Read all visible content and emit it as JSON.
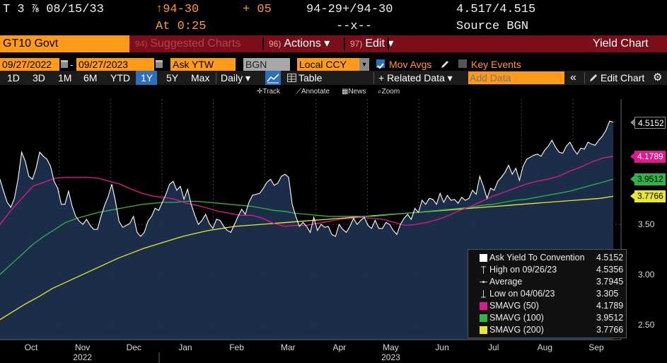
{
  "quote": {
    "security": "T 3 ⅞ 08/15/33",
    "price": "↑94-30",
    "change": "+ 05",
    "bid_ask": "94-29+/94-30",
    "yields": "4.517/4.515",
    "time": "At 0:25",
    "size": "--x--",
    "source": "Source BGN"
  },
  "menubar": {
    "ticker": "GT10 Govt",
    "suggested_num": "94)",
    "suggested": "Suggested Charts",
    "actions_num": "96)",
    "actions": "Actions ▾",
    "edit_num": "97)",
    "edit": "Edit ▾",
    "title": "Yield Chart"
  },
  "controls": {
    "start_date": "09/27/2022",
    "dash": "-",
    "end_date": "09/27/2023",
    "field": "Ask YTW",
    "source": "BGN",
    "currency": "Local CCY",
    "mov_avgs": "Mov Avgs",
    "key_events": "Key Events"
  },
  "periods": {
    "items": [
      "1D",
      "3D",
      "1M",
      "6M",
      "YTD",
      "1Y",
      "5Y",
      "Max"
    ],
    "selected": "1Y",
    "frequency": "Daily ▾",
    "table": "Table",
    "related": "+ Related Data ▾",
    "add_data_placeholder": "Add Data",
    "collapse": "«",
    "edit_chart": "Edit Chart"
  },
  "tools": {
    "track": "Track",
    "annotate": "Annotate",
    "news": "News",
    "zoom": "Zoom"
  },
  "colors": {
    "price": "#ffffff",
    "sma50": "#e0198f",
    "sma100": "#2fb34a",
    "sma200": "#e8e82e",
    "fill": "#1d2f4e",
    "orange": "#ff9a1a"
  },
  "chart_data": {
    "type": "line",
    "title": "",
    "ylim": [
      2.35,
      4.75
    ],
    "yticks": [
      "3.50",
      "3.00",
      "2.50"
    ],
    "xticks": [
      "Oct",
      "Nov",
      "Dec",
      "Jan",
      "Feb",
      "Mar",
      "Apr",
      "May",
      "Jun",
      "Jul",
      "Aug",
      "Sep"
    ],
    "xyears": [
      "2022",
      "2023"
    ],
    "series": [
      {
        "key": "price",
        "values": [
          3.95,
          3.83,
          3.72,
          3.67,
          3.76,
          3.95,
          4.22,
          4.13,
          3.98,
          3.95,
          4.06,
          4.22,
          4.18,
          4.15,
          4.08,
          3.93,
          3.86,
          3.7,
          3.7,
          3.83,
          3.68,
          3.58,
          3.53,
          3.5,
          3.55,
          3.49,
          3.45,
          3.45,
          3.58,
          3.69,
          3.78,
          3.9,
          3.73,
          3.53,
          3.47,
          3.49,
          3.51,
          3.58,
          3.42,
          3.38,
          3.42,
          3.53,
          3.58,
          3.66,
          3.64,
          3.72,
          3.8,
          3.9,
          3.93,
          3.84,
          3.88,
          3.75,
          3.85,
          3.7,
          3.59,
          3.5,
          3.54,
          3.6,
          3.51,
          3.46,
          3.55,
          3.54,
          3.48,
          3.44,
          3.42,
          3.5,
          3.58,
          3.65,
          3.6,
          3.72,
          3.79,
          3.8,
          3.81,
          3.86,
          3.92,
          3.95,
          3.89,
          3.91,
          3.98,
          4.0,
          3.97,
          3.7,
          3.58,
          3.48,
          3.52,
          3.48,
          3.42,
          3.57,
          3.44,
          3.5,
          3.47,
          3.48,
          3.4,
          3.38,
          3.5,
          3.45,
          3.42,
          3.48,
          3.56,
          3.5,
          3.54,
          3.57,
          3.49,
          3.46,
          3.54,
          3.46,
          3.46,
          3.52,
          3.5,
          3.44,
          3.4,
          3.5,
          3.56,
          3.6,
          3.55,
          3.66,
          3.62,
          3.74,
          3.7,
          3.76,
          3.75,
          3.7,
          3.81,
          3.72,
          3.79,
          3.74,
          3.75,
          3.71,
          3.77,
          3.74,
          3.76,
          3.84,
          3.8,
          3.98,
          3.88,
          3.76,
          3.86,
          3.84,
          3.93,
          3.97,
          4.02,
          4.09,
          4.0,
          4.06,
          3.94,
          4.08,
          4.15,
          4.17,
          4.19,
          4.2,
          4.18,
          4.24,
          4.28,
          4.34,
          4.27,
          4.22,
          4.21,
          4.28,
          4.32,
          4.25,
          4.2,
          4.26,
          4.25,
          4.32,
          4.3,
          4.29,
          4.34,
          4.38,
          4.44,
          4.53,
          4.52
        ]
      },
      {
        "key": "sma50",
        "name": "SMAVG (50)",
        "values": [
          3.5,
          3.64,
          3.76,
          3.88,
          3.92,
          3.96,
          3.97,
          3.97,
          3.97,
          3.96,
          3.93,
          3.9,
          3.85,
          3.81,
          3.78,
          3.77,
          3.75,
          3.71,
          3.69,
          3.66,
          3.63,
          3.61,
          3.59,
          3.59,
          3.56,
          3.51,
          3.48,
          3.49,
          3.49,
          3.51,
          3.53,
          3.55,
          3.56,
          3.57,
          3.56,
          3.55,
          3.52,
          3.49,
          3.5,
          3.52,
          3.55,
          3.59,
          3.64,
          3.68,
          3.73,
          3.78,
          3.82,
          3.86,
          3.9,
          3.93,
          3.95,
          3.98,
          4.03,
          4.07,
          4.12,
          4.16,
          4.18
        ]
      },
      {
        "key": "sma100",
        "name": "SMAVG (100)",
        "values": [
          3.0,
          3.1,
          3.2,
          3.3,
          3.38,
          3.45,
          3.52,
          3.56,
          3.59,
          3.62,
          3.64,
          3.66,
          3.68,
          3.7,
          3.71,
          3.72,
          3.72,
          3.73,
          3.73,
          3.72,
          3.71,
          3.7,
          3.69,
          3.68,
          3.66,
          3.64,
          3.63,
          3.61,
          3.6,
          3.59,
          3.58,
          3.58,
          3.58,
          3.58,
          3.58,
          3.59,
          3.6,
          3.61,
          3.62,
          3.63,
          3.64,
          3.65,
          3.66,
          3.67,
          3.69,
          3.7,
          3.72,
          3.74,
          3.75,
          3.77,
          3.79,
          3.81,
          3.83,
          3.86,
          3.89,
          3.92,
          3.95
        ]
      },
      {
        "key": "sma200",
        "name": "SMAVG (200)",
        "values": [
          2.55,
          2.63,
          2.71,
          2.78,
          2.86,
          2.92,
          2.98,
          3.04,
          3.1,
          3.16,
          3.21,
          3.26,
          3.3,
          3.34,
          3.38,
          3.41,
          3.44,
          3.46,
          3.48,
          3.49,
          3.5,
          3.51,
          3.52,
          3.53,
          3.54,
          3.55,
          3.56,
          3.57,
          3.58,
          3.59,
          3.6,
          3.61,
          3.62,
          3.63,
          3.64,
          3.65,
          3.66,
          3.67,
          3.68,
          3.69,
          3.7,
          3.71,
          3.72,
          3.73,
          3.74,
          3.75,
          3.76,
          3.78
        ]
      }
    ],
    "tags": [
      {
        "key": "price",
        "label": "4.5152"
      },
      {
        "key": "sma50",
        "label": "4.1789"
      },
      {
        "key": "sma100",
        "label": "3.9512"
      },
      {
        "key": "sma200",
        "label": "3.7766"
      }
    ],
    "legend": {
      "placement": "bottom-right",
      "rows": [
        {
          "key": "price",
          "name": "Ask Yield To Convention",
          "value": "4.5152"
        },
        {
          "key": "high",
          "name": "High on 09/26/23",
          "value": "4.5356"
        },
        {
          "key": "average",
          "name": "Average",
          "value": "3.7945"
        },
        {
          "key": "low",
          "name": "Low on 04/06/23",
          "value": "3.305"
        },
        {
          "key": "sma50",
          "name": "SMAVG (50)",
          "value": "4.1789"
        },
        {
          "key": "sma100",
          "name": "SMAVG (100)",
          "value": "3.9512"
        },
        {
          "key": "sma200",
          "name": "SMAVG (200)",
          "value": "3.7766"
        }
      ]
    }
  }
}
